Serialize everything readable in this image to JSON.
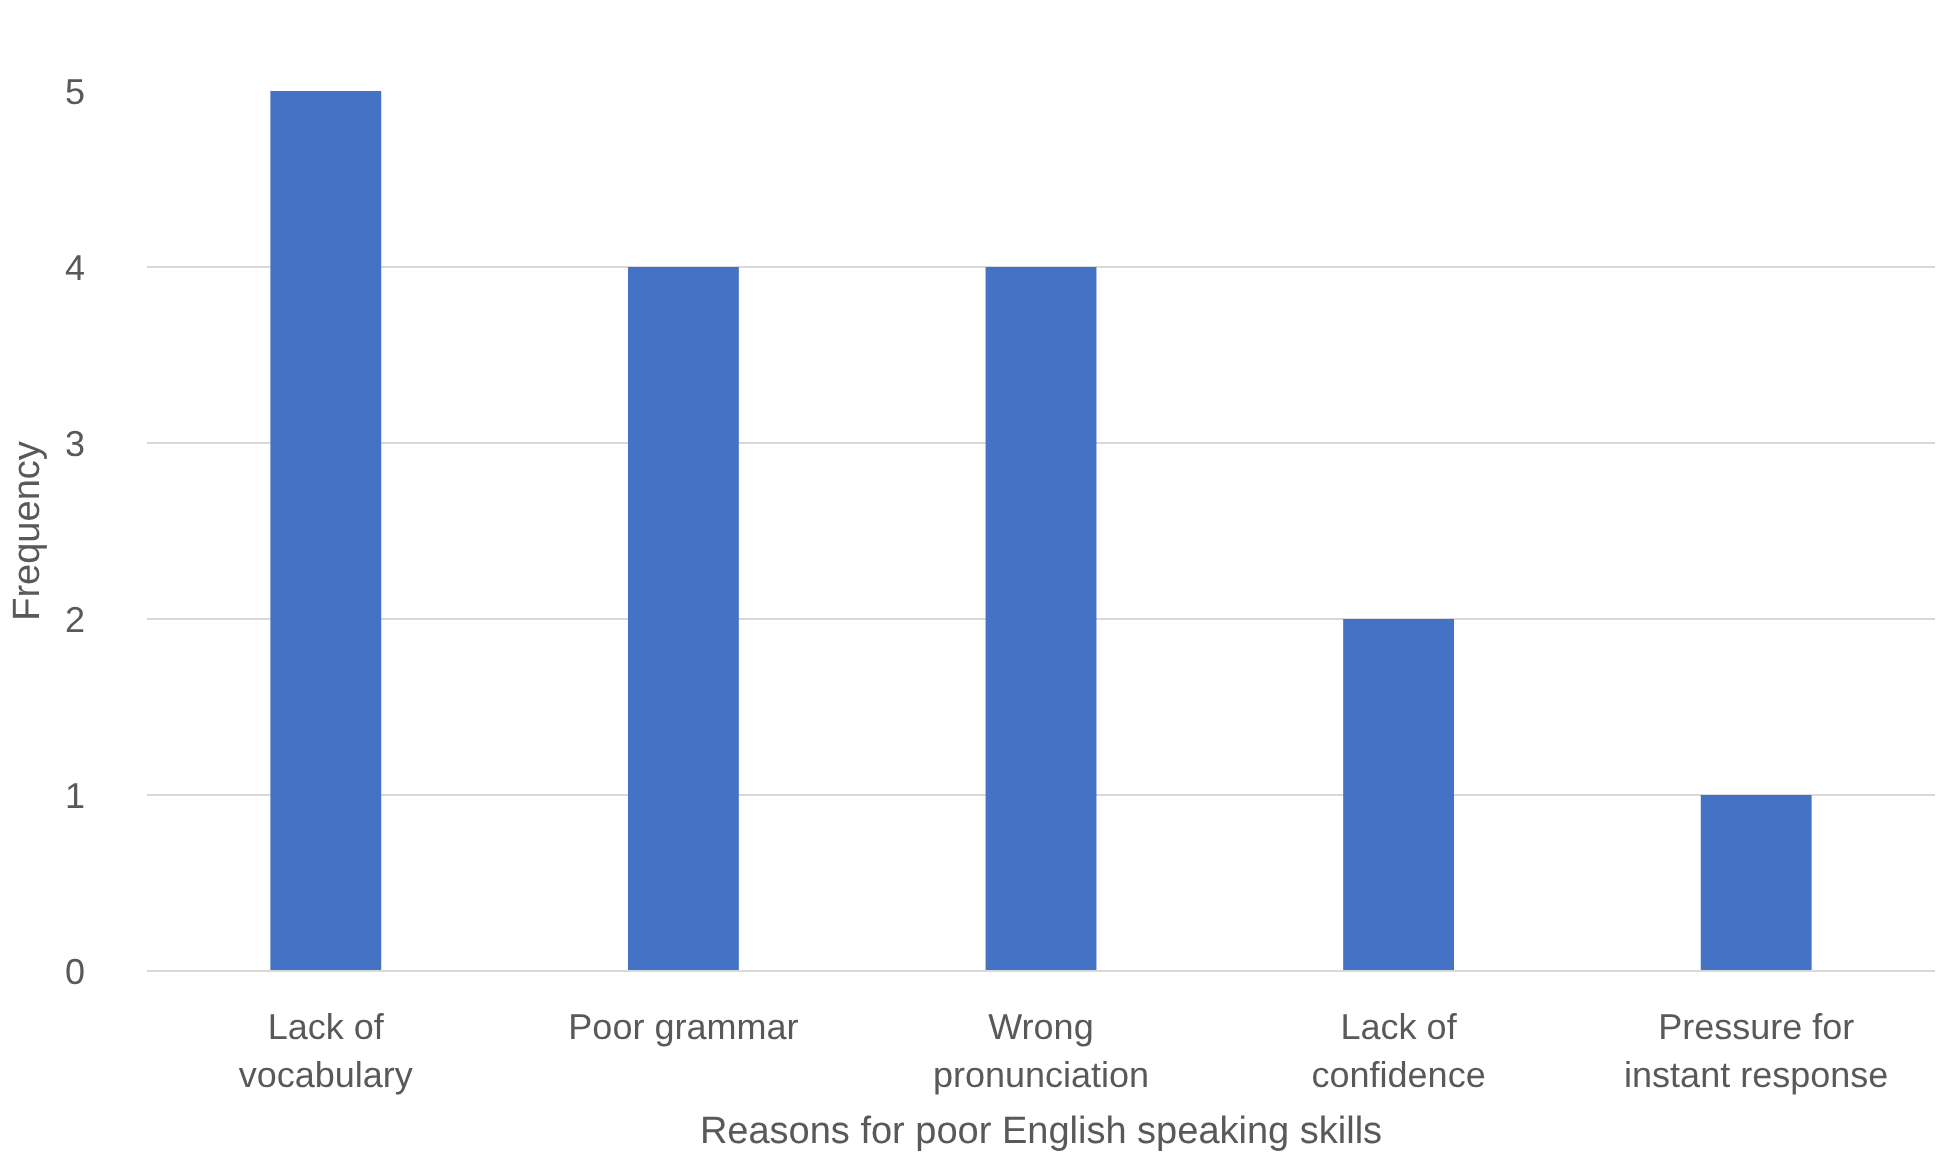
{
  "chart_data": {
    "type": "bar",
    "categories": [
      "Lack of\nvocabulary",
      "Poor grammar",
      "Wrong\npronunciation",
      "Lack of\nconfidence",
      "Pressure for\ninstant response"
    ],
    "values": [
      5,
      4,
      4,
      2,
      1
    ],
    "color": "#4472c4",
    "xlabel": "Reasons for poor English speaking skills",
    "ylabel": "Frequency",
    "ylim": [
      0,
      5
    ],
    "yticks": [
      0,
      1,
      2,
      3,
      4,
      5
    ],
    "grid": "y"
  }
}
